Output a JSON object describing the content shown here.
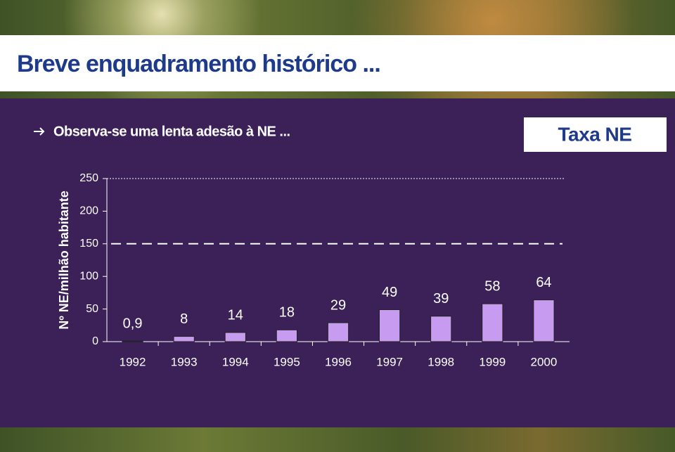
{
  "header": {
    "title": "Breve enquadramento histórico ...",
    "subtitle": "Observa-se uma lenta adesão à NE ...",
    "badge": "Taxa NE"
  },
  "chart_data": {
    "type": "bar",
    "y_label": "Nº NE/milhão habitante",
    "categories": [
      "1992",
      "1993",
      "1994",
      "1995",
      "1996",
      "1997",
      "1998",
      "1999",
      "2000"
    ],
    "values": [
      0.9,
      8,
      14,
      18,
      29,
      49,
      39,
      58,
      64
    ],
    "value_labels": [
      "0,9",
      "8",
      "14",
      "18",
      "29",
      "49",
      "39",
      "58",
      "64"
    ],
    "color": "#c79cf0",
    "ylim": [
      0,
      250
    ],
    "yticks": [
      0,
      50,
      100,
      150,
      200,
      250
    ],
    "reference_line": 150
  }
}
